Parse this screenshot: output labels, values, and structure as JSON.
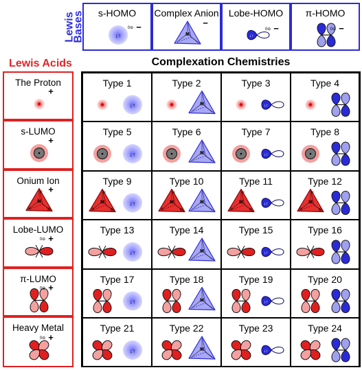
{
  "bases": {
    "label_line1": "Lewis",
    "label_line2": "Bases",
    "items": [
      {
        "label": "s-HOMO"
      },
      {
        "label": "Complex Anion"
      },
      {
        "label": "Lobe-HOMO"
      },
      {
        "label": "π-HOMO"
      }
    ]
  },
  "acids": {
    "title": "Lewis Acids",
    "items": [
      {
        "label": "The Proton"
      },
      {
        "label": "s-LUMO"
      },
      {
        "label": "Onium Ion"
      },
      {
        "label": "Lobe-LUMO"
      },
      {
        "label": "π-LUMO"
      },
      {
        "label": "Heavy Metal"
      }
    ]
  },
  "grid": {
    "title": "Complexation Chemistries",
    "types": [
      "Type 1",
      "Type 2",
      "Type 3",
      "Type 4",
      "Type 5",
      "Type 6",
      "Type 7",
      "Type 8",
      "Type 9",
      "Type 10",
      "Type 11",
      "Type 12",
      "Type 13",
      "Type 14",
      "Type 15",
      "Type 16",
      "Type 17",
      "Type 18",
      "Type 19",
      "Type 20",
      "Type 21",
      "Type 22",
      "Type 23",
      "Type 24"
    ]
  },
  "symbols": {
    "plus": "+",
    "minus": "−",
    "partial": "0⊖",
    "metal": "M",
    "substituent": "R"
  },
  "colors": {
    "acid_red": "#e02020",
    "base_blue": "#2b2bd6"
  }
}
